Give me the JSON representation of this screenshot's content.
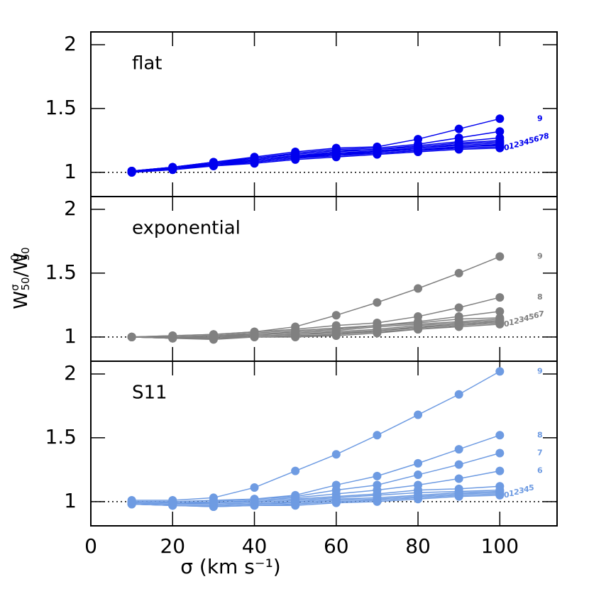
{
  "shared": {
    "ylabel_parts": [
      "W",
      "σ",
      "50",
      "/W",
      "0",
      "50"
    ],
    "xlabel": "σ  (km s⁻¹)"
  },
  "chart_data": [
    {
      "type": "line",
      "title": "flat",
      "x": [
        10,
        20,
        30,
        40,
        50,
        60,
        70,
        80,
        90,
        100
      ],
      "xlim": [
        0,
        114
      ],
      "xticks": [
        0,
        20,
        40,
        60,
        80,
        100
      ],
      "ylim": [
        0.81,
        2.1
      ],
      "yticks": [
        1,
        1.5,
        2
      ],
      "reference_line": 1,
      "series": [
        {
          "name": "0",
          "color": "#0000ee",
          "values": [
            1.0,
            1.02,
            1.05,
            1.07,
            1.1,
            1.12,
            1.14,
            1.16,
            1.18,
            1.19
          ]
        },
        {
          "name": "1",
          "color": "#0000ee",
          "values": [
            1.0,
            1.03,
            1.05,
            1.08,
            1.11,
            1.13,
            1.15,
            1.17,
            1.19,
            1.2
          ]
        },
        {
          "name": "2",
          "color": "#0000ee",
          "values": [
            1.0,
            1.03,
            1.06,
            1.08,
            1.11,
            1.14,
            1.15,
            1.17,
            1.2,
            1.21
          ]
        },
        {
          "name": "3",
          "color": "#0000ee",
          "values": [
            1.0,
            1.03,
            1.06,
            1.09,
            1.12,
            1.14,
            1.16,
            1.18,
            1.2,
            1.22
          ]
        },
        {
          "name": "4",
          "color": "#0000ee",
          "values": [
            1.01,
            1.03,
            1.06,
            1.09,
            1.12,
            1.15,
            1.16,
            1.19,
            1.21,
            1.23
          ]
        },
        {
          "name": "5",
          "color": "#0000ee",
          "values": [
            1.01,
            1.03,
            1.06,
            1.1,
            1.13,
            1.15,
            1.17,
            1.19,
            1.22,
            1.24
          ]
        },
        {
          "name": "6",
          "color": "#0000ee",
          "values": [
            1.01,
            1.03,
            1.07,
            1.1,
            1.13,
            1.16,
            1.18,
            1.2,
            1.23,
            1.25
          ]
        },
        {
          "name": "7",
          "color": "#0000ee",
          "values": [
            1.01,
            1.04,
            1.07,
            1.11,
            1.14,
            1.17,
            1.18,
            1.21,
            1.24,
            1.27
          ]
        },
        {
          "name": "8",
          "color": "#0000ee",
          "values": [
            1.01,
            1.04,
            1.08,
            1.11,
            1.15,
            1.18,
            1.19,
            1.22,
            1.27,
            1.32
          ]
        },
        {
          "name": "9",
          "color": "#0000ee",
          "values": [
            1.01,
            1.04,
            1.08,
            1.12,
            1.16,
            1.19,
            1.2,
            1.26,
            1.34,
            1.42
          ]
        }
      ]
    },
    {
      "type": "line",
      "title": "exponential",
      "x": [
        10,
        20,
        30,
        40,
        50,
        60,
        70,
        80,
        90,
        100
      ],
      "xlim": [
        0,
        114
      ],
      "xticks": [
        0,
        20,
        40,
        60,
        80,
        100
      ],
      "ylim": [
        0.81,
        2.1
      ],
      "yticks": [
        1,
        1.5,
        2
      ],
      "reference_line": 1,
      "series": [
        {
          "name": "0",
          "color": "#808080",
          "values": [
            1.0,
            0.99,
            0.98,
            1.0,
            1.0,
            1.01,
            1.03,
            1.06,
            1.08,
            1.1
          ]
        },
        {
          "name": "1",
          "color": "#808080",
          "values": [
            1.0,
            0.99,
            0.99,
            1.0,
            1.0,
            1.02,
            1.04,
            1.06,
            1.09,
            1.11
          ]
        },
        {
          "name": "2",
          "color": "#808080",
          "values": [
            1.0,
            0.99,
            0.99,
            1.0,
            1.01,
            1.02,
            1.05,
            1.07,
            1.1,
            1.12
          ]
        },
        {
          "name": "3",
          "color": "#808080",
          "values": [
            1.0,
            0.99,
            0.99,
            1.01,
            1.02,
            1.03,
            1.05,
            1.08,
            1.1,
            1.12
          ]
        },
        {
          "name": "4",
          "color": "#808080",
          "values": [
            1.0,
            0.99,
            1.0,
            1.01,
            1.02,
            1.04,
            1.06,
            1.09,
            1.11,
            1.13
          ]
        },
        {
          "name": "5",
          "color": "#808080",
          "values": [
            1.0,
            1.0,
            1.0,
            1.02,
            1.03,
            1.05,
            1.08,
            1.1,
            1.12,
            1.14
          ]
        },
        {
          "name": "6",
          "color": "#808080",
          "values": [
            1.0,
            1.0,
            1.01,
            1.02,
            1.04,
            1.06,
            1.09,
            1.11,
            1.14,
            1.15
          ]
        },
        {
          "name": "7",
          "color": "#808080",
          "values": [
            1.0,
            1.0,
            1.01,
            1.03,
            1.05,
            1.07,
            1.09,
            1.12,
            1.16,
            1.2
          ]
        },
        {
          "name": "8",
          "color": "#808080",
          "values": [
            1.0,
            1.01,
            1.02,
            1.04,
            1.06,
            1.09,
            1.11,
            1.16,
            1.23,
            1.31
          ]
        },
        {
          "name": "9",
          "color": "#808080",
          "values": [
            1.0,
            1.01,
            1.02,
            1.04,
            1.08,
            1.17,
            1.27,
            1.38,
            1.5,
            1.63
          ]
        }
      ]
    },
    {
      "type": "line",
      "title": "S11",
      "x": [
        10,
        20,
        30,
        40,
        50,
        60,
        70,
        80,
        90,
        100
      ],
      "xlim": [
        0,
        114
      ],
      "xticks": [
        0,
        20,
        40,
        60,
        80,
        100
      ],
      "ylim": [
        0.81,
        2.1
      ],
      "yticks": [
        1,
        1.5,
        2
      ],
      "reference_line": 1,
      "series": [
        {
          "name": "0",
          "color": "#6e9be2",
          "values": [
            0.98,
            0.97,
            0.96,
            0.97,
            0.97,
            0.99,
            1.0,
            1.02,
            1.04,
            1.05
          ]
        },
        {
          "name": "1",
          "color": "#6e9be2",
          "values": [
            0.98,
            0.97,
            0.96,
            0.97,
            0.98,
            1.0,
            1.01,
            1.03,
            1.05,
            1.06
          ]
        },
        {
          "name": "2",
          "color": "#6e9be2",
          "values": [
            0.98,
            0.97,
            0.97,
            0.98,
            0.99,
            1.01,
            1.02,
            1.04,
            1.06,
            1.07
          ]
        },
        {
          "name": "3",
          "color": "#6e9be2",
          "values": [
            0.98,
            0.97,
            0.97,
            0.98,
            1.0,
            1.02,
            1.03,
            1.05,
            1.07,
            1.08
          ]
        },
        {
          "name": "4",
          "color": "#6e9be2",
          "values": [
            0.99,
            0.98,
            0.98,
            0.99,
            1.01,
            1.03,
            1.05,
            1.07,
            1.08,
            1.09
          ]
        },
        {
          "name": "5",
          "color": "#6e9be2",
          "values": [
            0.99,
            0.98,
            0.99,
            1.0,
            1.02,
            1.04,
            1.06,
            1.09,
            1.1,
            1.12
          ]
        },
        {
          "name": "6",
          "color": "#6e9be2",
          "values": [
            1.0,
            0.99,
            0.99,
            1.01,
            1.03,
            1.06,
            1.09,
            1.13,
            1.18,
            1.24
          ]
        },
        {
          "name": "7",
          "color": "#6e9be2",
          "values": [
            1.0,
            0.99,
            1.0,
            1.02,
            1.04,
            1.09,
            1.13,
            1.21,
            1.29,
            1.38
          ]
        },
        {
          "name": "8",
          "color": "#6e9be2",
          "values": [
            1.0,
            1.0,
            1.01,
            1.02,
            1.05,
            1.13,
            1.2,
            1.3,
            1.41,
            1.52
          ]
        },
        {
          "name": "9",
          "color": "#6e9be2",
          "values": [
            1.01,
            1.01,
            1.03,
            1.11,
            1.24,
            1.37,
            1.52,
            1.68,
            1.84,
            2.02
          ]
        }
      ]
    }
  ]
}
